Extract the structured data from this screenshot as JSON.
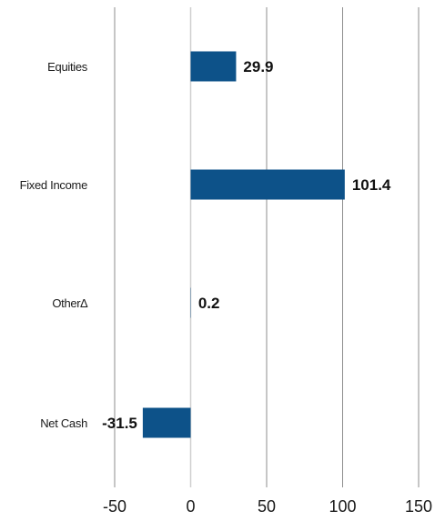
{
  "chart_data": {
    "type": "bar",
    "orientation": "horizontal",
    "categories": [
      "Equities",
      "Fixed Income",
      "Other∆",
      "Net Cash"
    ],
    "values": [
      29.9,
      101.4,
      0.2,
      -31.5
    ],
    "data_labels": [
      "29.9",
      "101.4",
      "0.2",
      "-31.5"
    ],
    "xlim": [
      -50,
      150
    ],
    "xticks": [
      -50,
      0,
      50,
      100,
      150
    ],
    "xtick_labels": [
      "-50",
      "0",
      "50",
      "100",
      "150"
    ],
    "grid": "vertical",
    "legend": "none",
    "bar_color": "#0d5289"
  }
}
